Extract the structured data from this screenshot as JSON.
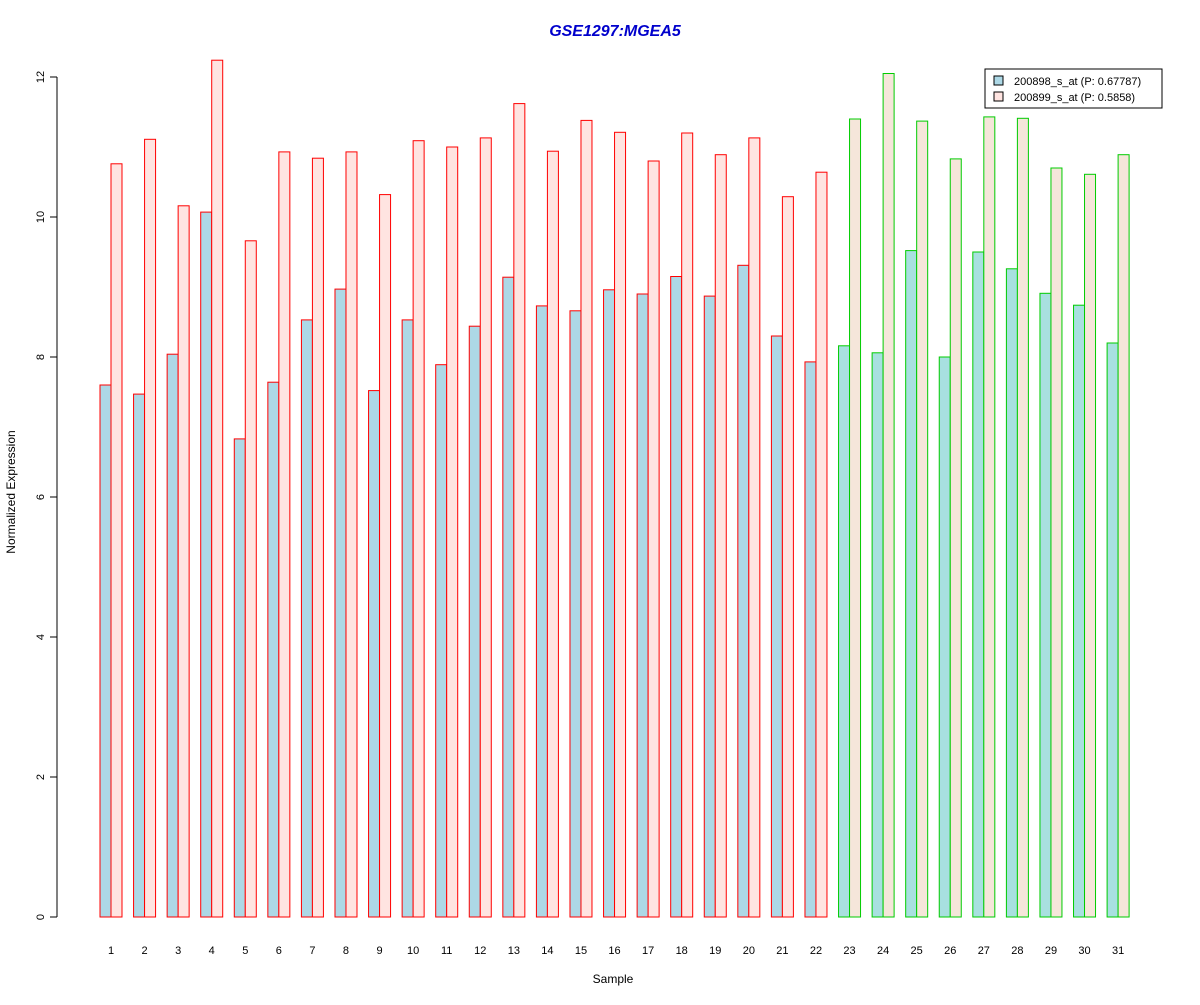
{
  "chart_data": {
    "type": "bar",
    "title": "GSE1297:MGEA5",
    "xlabel": "Sample",
    "ylabel": "Normalized Expression",
    "ylim": [
      0,
      12.3
    ],
    "yticks": [
      "0",
      "2",
      "4",
      "6",
      "8",
      "10",
      "12"
    ],
    "grid": false,
    "legend_position": "top-right",
    "categories": [
      "1",
      "2",
      "3",
      "4",
      "5",
      "6",
      "7",
      "8",
      "9",
      "10",
      "11",
      "12",
      "13",
      "14",
      "15",
      "16",
      "17",
      "18",
      "19",
      "20",
      "21",
      "22",
      "23",
      "24",
      "25",
      "26",
      "27",
      "28",
      "29",
      "30",
      "31"
    ],
    "series": [
      {
        "name": "200898_s_at (P: 0.67787)",
        "values": [
          7.6,
          7.47,
          8.04,
          10.07,
          6.83,
          7.64,
          8.53,
          8.97,
          7.52,
          8.53,
          7.89,
          8.44,
          9.14,
          8.73,
          8.66,
          8.96,
          8.9,
          9.15,
          8.87,
          9.31,
          8.3,
          7.93,
          8.16,
          8.06,
          9.52,
          8.0,
          9.5,
          9.26,
          8.91,
          8.74,
          8.2
        ]
      },
      {
        "name": "200899_s_at (P: 0.5858)",
        "values": [
          10.76,
          11.11,
          10.16,
          12.24,
          9.66,
          10.93,
          10.84,
          10.93,
          10.32,
          11.09,
          11.0,
          11.13,
          11.62,
          10.94,
          11.38,
          11.21,
          10.8,
          11.2,
          10.89,
          11.13,
          10.29,
          10.64,
          11.4,
          12.05,
          11.37,
          10.83,
          11.43,
          11.41,
          10.7,
          10.61,
          10.89
        ]
      }
    ],
    "groups": [
      {
        "samples": [
          1,
          22
        ],
        "border_color": "#ff0000",
        "fills": [
          "#add8e6",
          "#ffe4e1"
        ]
      },
      {
        "samples": [
          23,
          31
        ],
        "border_color": "#00cc00",
        "fills": [
          "#a8e0e0",
          "#f5e6da"
        ]
      }
    ],
    "colors": {
      "title": "#0000cc",
      "axis": "#000000",
      "legend_series_1_fill": "#add8e6",
      "legend_series_2_fill": "#ffe4e1"
    }
  }
}
